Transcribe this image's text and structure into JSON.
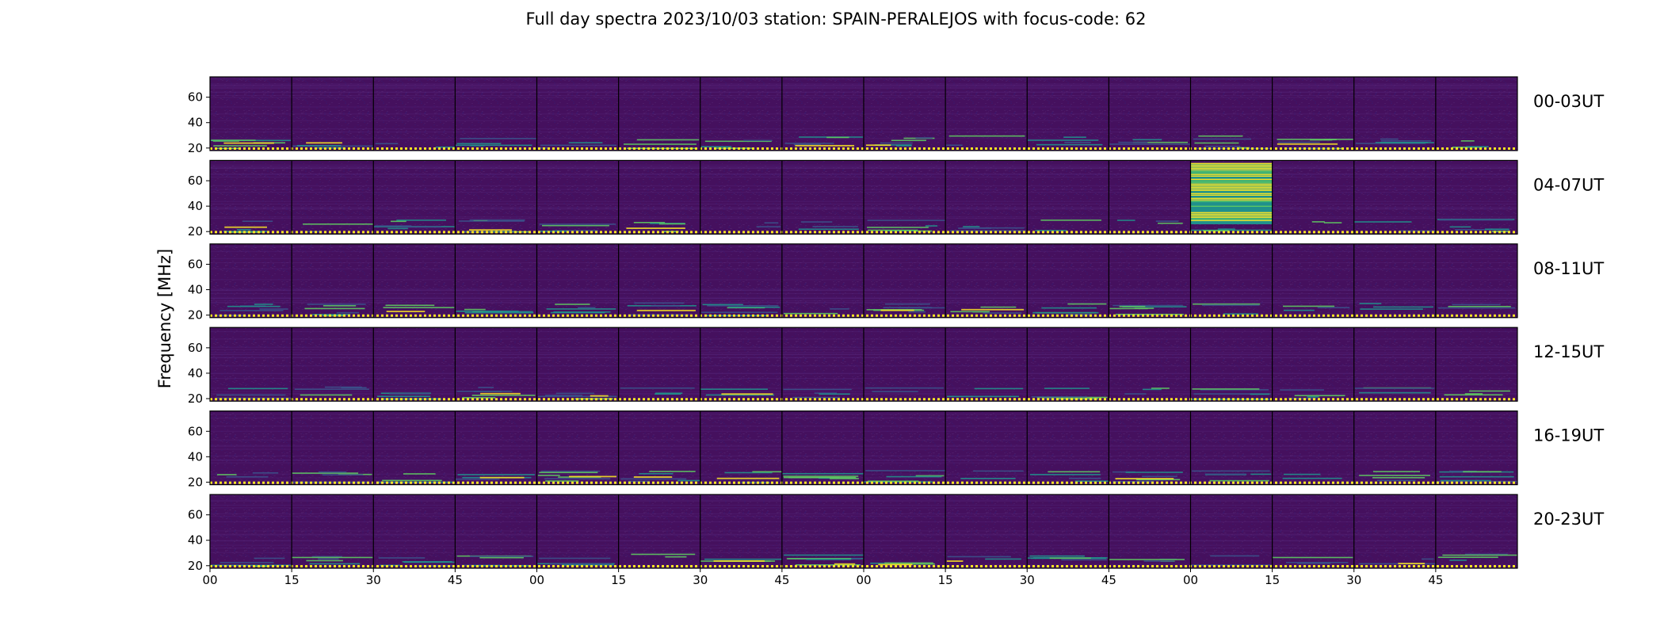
{
  "chart_data": {
    "type": "heatmap",
    "title": "Full day spectra 2023/10/03 station: SPAIN-PERALEJOS with focus-code: 62",
    "ylabel": "Frequency [MHz]",
    "xlabel": "",
    "ylim": [
      18,
      76
    ],
    "yticks": [
      "20",
      "40",
      "60"
    ],
    "ytick_values": [
      20,
      40,
      60
    ],
    "xtick_labels": [
      "00",
      "15",
      "30",
      "45",
      "00",
      "15",
      "30",
      "45",
      "00",
      "15",
      "30",
      "45",
      "00",
      "15",
      "30",
      "45"
    ],
    "panels_per_row": 16,
    "panel_minutes": 15,
    "rows": [
      {
        "label": "00-03UT"
      },
      {
        "label": "04-07UT"
      },
      {
        "label": "08-11UT"
      },
      {
        "label": "12-15UT"
      },
      {
        "label": "16-19UT"
      },
      {
        "label": "20-23UT"
      }
    ],
    "notable_events": [
      {
        "row": "04-07UT",
        "panel": 13,
        "time": "07:00-07:15",
        "freq_range_mhz": [
          26,
          74
        ],
        "description": "strong broadband emission"
      }
    ],
    "colormap": [
      "#440154",
      "#3b528b",
      "#21918c",
      "#5ec962",
      "#fde725"
    ],
    "background_color": "#45105e",
    "grid": false
  }
}
